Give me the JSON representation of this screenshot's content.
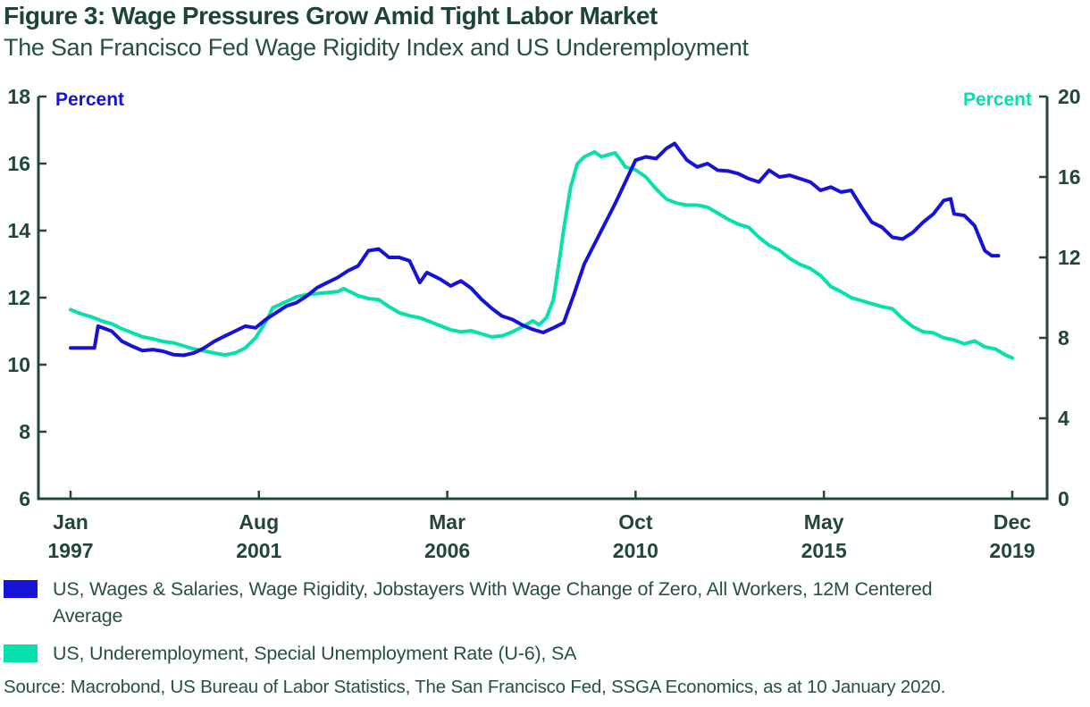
{
  "header": {
    "figure_label": "Figure 3:"
  },
  "source": {
    "text": "Source: Macrobond, US Bureau of Labor Statistics, The San Francisco Fed, SSGA Economics, as at 10 January 2020."
  },
  "colors": {
    "title_text": "#1E4434",
    "body_text": "#27503F",
    "axis": "#24463A",
    "blue_series": "#1712D6",
    "teal_series": "#05E0AC",
    "background": "#FFFFFF"
  },
  "chart_data": {
    "type": "line",
    "title": "Figure 3: Wage Pressures Grow Amid Tight Labor Market",
    "subtitle": "The San Francisco Fed Wage Rigidity Index and US Underemployment",
    "grid": "off",
    "legend_position": "bottom-left",
    "left_axis": {
      "label": "Percent",
      "label_color": "#1712D6",
      "min": 6,
      "max": 18,
      "ticks": [
        18,
        16,
        14,
        12,
        10,
        8,
        6
      ]
    },
    "right_axis": {
      "label": "Percent",
      "label_color": "#05E0AC",
      "min": 0,
      "max": 20,
      "ticks": [
        20,
        16,
        12,
        8,
        4,
        0
      ]
    },
    "x_axis": {
      "min": 1997.0,
      "max": 2019.917,
      "ticks": [
        {
          "t": 1997.0,
          "month": "Jan",
          "year": "1997"
        },
        {
          "t": 2001.583,
          "month": "Aug",
          "year": "2001"
        },
        {
          "t": 2006.167,
          "month": "Mar",
          "year": "2006"
        },
        {
          "t": 2010.75,
          "month": "Oct",
          "year": "2010"
        },
        {
          "t": 2015.333,
          "month": "May",
          "year": "2015"
        },
        {
          "t": 2019.917,
          "month": "Dec",
          "year": "2019"
        }
      ]
    },
    "series": [
      {
        "name": "US, Wages & Salaries, Wage Rigidity, Jobstayers With Wage Change of Zero, All Workers, 12M Centered Average",
        "color": "#1712D6",
        "axis": "left",
        "x": [
          1997.0,
          1997.25,
          1997.58,
          1997.67,
          1998.0,
          1998.25,
          1998.5,
          1998.75,
          1999.0,
          1999.25,
          1999.5,
          1999.75,
          2000.0,
          2000.25,
          2000.5,
          2000.75,
          2001.0,
          2001.25,
          2001.5,
          2001.75,
          2002.0,
          2002.25,
          2002.5,
          2002.75,
          2003.0,
          2003.25,
          2003.5,
          2003.75,
          2004.0,
          2004.25,
          2004.5,
          2004.75,
          2005.0,
          2005.25,
          2005.5,
          2005.67,
          2006.0,
          2006.25,
          2006.5,
          2006.75,
          2007.0,
          2007.25,
          2007.5,
          2007.75,
          2008.0,
          2008.25,
          2008.5,
          2008.75,
          2009.0,
          2009.25,
          2009.5,
          2009.75,
          2010.0,
          2010.25,
          2010.5,
          2010.75,
          2011.0,
          2011.25,
          2011.5,
          2011.7,
          2012.0,
          2012.25,
          2012.5,
          2012.75,
          2013.0,
          2013.25,
          2013.5,
          2013.75,
          2014.0,
          2014.25,
          2014.5,
          2014.75,
          2015.0,
          2015.25,
          2015.5,
          2015.75,
          2016.0,
          2016.25,
          2016.5,
          2016.75,
          2017.0,
          2017.25,
          2017.5,
          2017.75,
          2018.0,
          2018.25,
          2018.42,
          2018.5,
          2018.75,
          2019.0,
          2019.25,
          2019.42,
          2019.58
        ],
        "values": [
          10.5,
          10.5,
          10.5,
          11.15,
          11.0,
          10.7,
          10.55,
          10.42,
          10.45,
          10.4,
          10.3,
          10.28,
          10.35,
          10.5,
          10.7,
          10.85,
          11.0,
          11.15,
          11.1,
          11.35,
          11.55,
          11.75,
          11.85,
          12.05,
          12.3,
          12.45,
          12.6,
          12.8,
          12.95,
          13.4,
          13.45,
          13.2,
          13.2,
          13.1,
          12.45,
          12.75,
          12.55,
          12.35,
          12.5,
          12.28,
          11.95,
          11.68,
          11.45,
          11.35,
          11.18,
          11.05,
          10.96,
          11.1,
          11.25,
          12.1,
          13.0,
          13.6,
          14.2,
          14.8,
          15.45,
          16.1,
          16.2,
          16.15,
          16.45,
          16.6,
          16.1,
          15.9,
          16.0,
          15.8,
          15.78,
          15.7,
          15.55,
          15.45,
          15.8,
          15.6,
          15.65,
          15.55,
          15.45,
          15.2,
          15.3,
          15.15,
          15.2,
          14.7,
          14.25,
          14.1,
          13.8,
          13.75,
          13.95,
          14.25,
          14.5,
          14.9,
          14.95,
          14.5,
          14.45,
          14.15,
          13.4,
          13.25,
          13.25
        ]
      },
      {
        "name": "US, Underemployment, Special Unemployment Rate (U-6), SA",
        "color": "#05E0AC",
        "axis": "right",
        "x": [
          1997.0,
          1997.25,
          1997.5,
          1997.75,
          1998.0,
          1998.25,
          1998.5,
          1998.75,
          1999.0,
          1999.25,
          1999.5,
          1999.75,
          2000.0,
          2000.25,
          2000.5,
          2000.75,
          2001.0,
          2001.25,
          2001.5,
          2001.75,
          2001.92,
          2002.25,
          2002.5,
          2002.75,
          2003.0,
          2003.25,
          2003.5,
          2003.65,
          2004.0,
          2004.25,
          2004.5,
          2004.75,
          2005.0,
          2005.25,
          2005.5,
          2005.75,
          2006.0,
          2006.25,
          2006.5,
          2006.75,
          2007.0,
          2007.25,
          2007.5,
          2007.75,
          2008.0,
          2008.25,
          2008.4,
          2008.58,
          2008.75,
          2008.92,
          2009.0,
          2009.17,
          2009.33,
          2009.5,
          2009.75,
          2009.92,
          2010.08,
          2010.25,
          2010.42,
          2010.5,
          2010.75,
          2011.0,
          2011.25,
          2011.5,
          2011.75,
          2012.0,
          2012.25,
          2012.5,
          2012.75,
          2013.0,
          2013.25,
          2013.5,
          2013.75,
          2014.0,
          2014.25,
          2014.5,
          2014.75,
          2015.0,
          2015.25,
          2015.5,
          2015.75,
          2016.0,
          2016.25,
          2016.5,
          2016.75,
          2017.0,
          2017.25,
          2017.5,
          2017.75,
          2018.0,
          2018.25,
          2018.5,
          2018.75,
          2019.0,
          2019.25,
          2019.5,
          2019.75,
          2019.92
        ],
        "values": [
          9.4,
          9.2,
          9.05,
          8.85,
          8.7,
          8.45,
          8.25,
          8.05,
          7.95,
          7.82,
          7.75,
          7.6,
          7.45,
          7.35,
          7.25,
          7.15,
          7.25,
          7.5,
          8.0,
          8.8,
          9.5,
          9.8,
          10.05,
          10.15,
          10.2,
          10.25,
          10.3,
          10.45,
          10.1,
          9.95,
          9.9,
          9.55,
          9.25,
          9.1,
          9.0,
          8.8,
          8.6,
          8.4,
          8.3,
          8.35,
          8.2,
          8.05,
          8.1,
          8.3,
          8.55,
          8.85,
          8.65,
          9.0,
          9.9,
          12.2,
          13.4,
          15.5,
          16.65,
          17.0,
          17.25,
          17.0,
          17.1,
          17.2,
          16.75,
          16.5,
          16.35,
          16.0,
          15.4,
          14.9,
          14.7,
          14.6,
          14.6,
          14.5,
          14.2,
          13.9,
          13.65,
          13.5,
          13.0,
          12.6,
          12.35,
          11.95,
          11.65,
          11.45,
          11.1,
          10.55,
          10.3,
          10.0,
          9.85,
          9.7,
          9.55,
          9.45,
          8.95,
          8.55,
          8.3,
          8.25,
          8.0,
          7.9,
          7.7,
          7.85,
          7.55,
          7.45,
          7.15,
          7.0
        ]
      }
    ]
  },
  "legend": {
    "items": [
      {
        "label": "US, Wages & Salaries, Wage Rigidity, Jobstayers With Wage Change of Zero, All Workers, 12M Centered Average"
      },
      {
        "label": "US, Underemployment, Special Unemployment Rate (U-6), SA"
      }
    ]
  }
}
